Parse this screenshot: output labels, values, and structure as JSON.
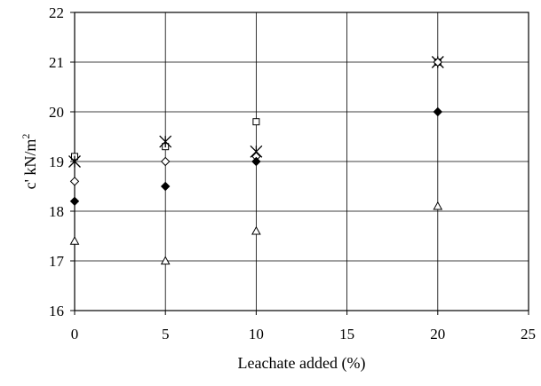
{
  "chart_data": {
    "type": "scatter",
    "title": "",
    "xlabel": "Leachate added (%)",
    "ylabel_main": "c' kN/m",
    "ylabel_sup": "2",
    "xlim": [
      0,
      25
    ],
    "ylim": [
      16,
      22
    ],
    "xticks": [
      0,
      5,
      10,
      15,
      20,
      25
    ],
    "yticks": [
      16,
      17,
      18,
      19,
      20,
      21,
      22
    ],
    "xtick_labels": [
      "0",
      "5",
      "10",
      "15",
      "20",
      "25"
    ],
    "ytick_labels": [
      "16",
      "17",
      "18",
      "19",
      "20",
      "21",
      "22"
    ],
    "grid": true,
    "legend": "none",
    "series": [
      {
        "marker": "square",
        "points": [
          [
            0,
            19.1
          ],
          [
            5,
            19.3
          ],
          [
            10,
            19.8
          ],
          [
            20,
            21.0
          ]
        ]
      },
      {
        "marker": "star",
        "points": [
          [
            0,
            19.0
          ],
          [
            5,
            19.4
          ],
          [
            10,
            19.2
          ],
          [
            20,
            21.0
          ]
        ]
      },
      {
        "marker": "diamond-open",
        "points": [
          [
            0,
            18.6
          ],
          [
            5,
            19.0
          ],
          [
            10,
            19.1
          ],
          [
            20,
            21.0
          ]
        ]
      },
      {
        "marker": "diamond-filled",
        "points": [
          [
            0,
            18.2
          ],
          [
            5,
            18.5
          ],
          [
            10,
            19.0
          ],
          [
            20,
            20.0
          ]
        ]
      },
      {
        "marker": "triangle",
        "points": [
          [
            0,
            17.4
          ],
          [
            5,
            17.0
          ],
          [
            10,
            17.6
          ],
          [
            20,
            18.1
          ]
        ]
      }
    ]
  }
}
